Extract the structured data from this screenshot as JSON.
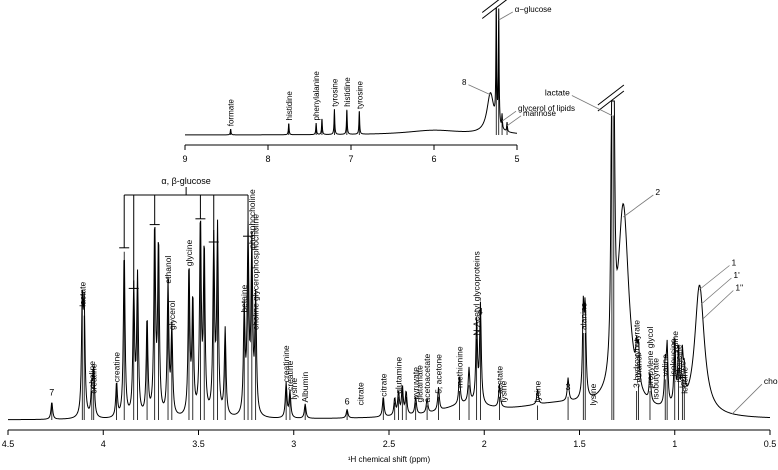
{
  "chart_data": [
    {
      "type": "line",
      "panel": "main",
      "xlabel": "¹H chemical shift (ppm)",
      "xlim": [
        4.5,
        0.5
      ],
      "ticks": [
        "4.5",
        "4",
        "3.5",
        "3",
        "2.5",
        "2",
        "1.5",
        "1",
        "0.5"
      ],
      "tick_values": [
        4.5,
        4.0,
        3.5,
        3.0,
        2.5,
        2.0,
        1.5,
        1.0,
        0.5
      ],
      "peaks": [
        {
          "ppm": 4.27,
          "h": 0.06
        },
        {
          "ppm": 4.11,
          "h": 0.38
        },
        {
          "ppm": 4.1,
          "h": 0.36
        },
        {
          "ppm": 4.06,
          "h": 0.1
        },
        {
          "ppm": 4.05,
          "h": 0.16
        },
        {
          "ppm": 3.93,
          "h": 0.12
        },
        {
          "ppm": 3.89,
          "h": 0.58
        },
        {
          "ppm": 3.84,
          "h": 0.44
        },
        {
          "ppm": 3.82,
          "h": 0.48
        },
        {
          "ppm": 3.77,
          "h": 0.34
        },
        {
          "ppm": 3.73,
          "h": 0.66
        },
        {
          "ppm": 3.71,
          "h": 0.6
        },
        {
          "ppm": 3.66,
          "h": 0.46
        },
        {
          "ppm": 3.64,
          "h": 0.3
        },
        {
          "ppm": 3.55,
          "h": 0.52
        },
        {
          "ppm": 3.53,
          "h": 0.4
        },
        {
          "ppm": 3.49,
          "h": 0.68
        },
        {
          "ppm": 3.47,
          "h": 0.58
        },
        {
          "ppm": 3.42,
          "h": 0.6
        },
        {
          "ppm": 3.4,
          "h": 0.64
        },
        {
          "ppm": 3.36,
          "h": 0.3
        },
        {
          "ppm": 3.26,
          "h": 0.36
        },
        {
          "ppm": 3.24,
          "h": 0.62
        },
        {
          "ppm": 3.22,
          "h": 0.58
        },
        {
          "ppm": 3.2,
          "h": 0.4
        },
        {
          "ppm": 3.04,
          "h": 0.12
        },
        {
          "ppm": 3.02,
          "h": 0.09
        },
        {
          "ppm": 2.94,
          "h": 0.05
        },
        {
          "ppm": 2.72,
          "h": 0.03
        },
        {
          "ppm": 2.53,
          "h": 0.07
        },
        {
          "ppm": 2.47,
          "h": 0.06
        },
        {
          "ppm": 2.45,
          "h": 0.08
        },
        {
          "ppm": 2.43,
          "h": 0.1
        },
        {
          "ppm": 2.41,
          "h": 0.08
        },
        {
          "ppm": 2.36,
          "h": 0.06
        },
        {
          "ppm": 2.3,
          "h": 0.05
        },
        {
          "ppm": 2.24,
          "h": 0.08
        },
        {
          "ppm": 2.13,
          "h": 0.1
        },
        {
          "ppm": 2.08,
          "h": 0.12
        },
        {
          "ppm": 2.04,
          "h": 0.28
        },
        {
          "ppm": 2.02,
          "h": 0.34
        },
        {
          "ppm": 1.92,
          "h": 0.08
        },
        {
          "ppm": 1.72,
          "h": 0.05
        },
        {
          "ppm": 1.56,
          "h": 0.08
        },
        {
          "ppm": 1.48,
          "h": 0.3
        },
        {
          "ppm": 1.47,
          "h": 0.3
        },
        {
          "ppm": 1.33,
          "h": 1.05
        },
        {
          "ppm": 1.32,
          "h": 1.05
        },
        {
          "ppm": 1.2,
          "h": 0.1
        },
        {
          "ppm": 1.19,
          "h": 0.12
        },
        {
          "ppm": 1.13,
          "h": 0.1
        },
        {
          "ppm": 1.05,
          "h": 0.14
        },
        {
          "ppm": 1.04,
          "h": 0.2
        },
        {
          "ppm": 1.0,
          "h": 0.22
        },
        {
          "ppm": 0.98,
          "h": 0.18
        },
        {
          "ppm": 0.96,
          "h": 0.16
        },
        {
          "ppm": 0.95,
          "h": 0.1
        }
      ],
      "broad": [
        {
          "ppm": 1.27,
          "h": 0.7,
          "w": 0.035
        },
        {
          "ppm": 0.87,
          "h": 0.45,
          "w": 0.03
        },
        {
          "ppm": 1.6,
          "h": 0.05,
          "w": 0.3
        },
        {
          "ppm": 2.1,
          "h": 0.04,
          "w": 0.15
        }
      ],
      "labels": [
        {
          "text": "7",
          "ppm": 4.27,
          "tip": 0.06,
          "rotate": false
        },
        {
          "text": "lactate",
          "ppm": 4.11,
          "tip": 0.38,
          "rotate": true
        },
        {
          "text": "choline",
          "ppm": 4.06,
          "tip": 0.1,
          "rotate": true
        },
        {
          "text": "creatine",
          "ppm": 4.05,
          "tip": 0.08,
          "rotate": true
        },
        {
          "text": "creatine",
          "ppm": 3.93,
          "tip": 0.12,
          "rotate": true
        },
        {
          "text": "ethanol",
          "ppm": 3.66,
          "tip": 0.46,
          "rotate": true
        },
        {
          "text": "glycerol",
          "ppm": 3.64,
          "tip": 0.3,
          "rotate": true
        },
        {
          "text": "glycine",
          "ppm": 3.55,
          "tip": 0.52,
          "rotate": true
        },
        {
          "text": "betaine",
          "ppm": 3.26,
          "tip": 0.36,
          "rotate": true
        },
        {
          "text": "phosphocholine",
          "ppm": 3.22,
          "tip": 0.58,
          "rotate": true
        },
        {
          "text": "glycerophosphocholine",
          "ppm": 3.2,
          "tip": 0.4,
          "rotate": true
        },
        {
          "text": "choline",
          "ppm": 3.2,
          "tip": 0.3,
          "rotate": true
        },
        {
          "text": "creatinine",
          "ppm": 3.04,
          "tip": 0.12,
          "rotate": true
        },
        {
          "text": "creatine",
          "ppm": 3.02,
          "tip": 0.09,
          "rotate": true
        },
        {
          "text": "lysine",
          "ppm": 3.0,
          "tip": 0.06,
          "rotate": true
        },
        {
          "text": "Albumin",
          "ppm": 2.94,
          "tip": 0.05,
          "rotate": true
        },
        {
          "text": "6",
          "ppm": 2.72,
          "tip": 0.03,
          "rotate": false
        },
        {
          "text": "citrate",
          "ppm": 2.65,
          "tip": 0.04,
          "rotate": true
        },
        {
          "text": "citrate",
          "ppm": 2.53,
          "tip": 0.07,
          "rotate": true
        },
        {
          "text": "glutamine",
          "ppm": 2.45,
          "tip": 0.08,
          "rotate": true
        },
        {
          "text": "pyruvate",
          "ppm": 2.36,
          "tip": 0.06,
          "rotate": true
        },
        {
          "text": "glutamate",
          "ppm": 2.34,
          "tip": 0.05,
          "rotate": true
        },
        {
          "text": "acetoacetate",
          "ppm": 2.3,
          "tip": 0.05,
          "rotate": true
        },
        {
          "text": "5, acetone",
          "ppm": 2.24,
          "tip": 0.08,
          "rotate": true
        },
        {
          "text": "methionine",
          "ppm": 2.13,
          "tip": 0.1,
          "rotate": true
        },
        {
          "text": "N-Acetyl glycoproteins",
          "ppm": 2.04,
          "tip": 0.28,
          "rotate": true
        },
        {
          "text": "4",
          "ppm": 2.02,
          "tip": 0.34,
          "rotate": false
        },
        {
          "text": "acetate",
          "ppm": 1.92,
          "tip": 0.08,
          "rotate": true
        },
        {
          "text": "lysine",
          "ppm": 1.9,
          "tip": 0.05,
          "rotate": true
        },
        {
          "text": "lysine",
          "ppm": 1.72,
          "tip": 0.05,
          "rotate": true
        },
        {
          "text": "3",
          "ppm": 1.56,
          "tip": 0.08,
          "rotate": false
        },
        {
          "text": "alanine",
          "ppm": 1.48,
          "tip": 0.3,
          "rotate": true
        },
        {
          "text": "lysine",
          "ppm": 1.43,
          "tip": 0.04,
          "rotate": true
        },
        {
          "text": "3-hydroxybutyrate",
          "ppm": 1.2,
          "tip": 0.1,
          "rotate": true
        },
        {
          "text": "ethanol",
          "ppm": 1.19,
          "tip": 0.12,
          "rotate": true
        },
        {
          "text": "propylene glycol",
          "ppm": 1.13,
          "tip": 0.1,
          "rotate": true
        },
        {
          "text": "isobutyrate",
          "ppm": 1.1,
          "tip": 0.06,
          "rotate": true
        },
        {
          "text": "valine",
          "ppm": 1.05,
          "tip": 0.14,
          "rotate": true
        },
        {
          "text": "isoleucine",
          "ppm": 1.01,
          "tip": 0.14,
          "rotate": true
        },
        {
          "text": "valine",
          "ppm": 1.0,
          "tip": 0.22,
          "rotate": true
        },
        {
          "text": "isoleucine",
          "ppm": 0.98,
          "tip": 0.12,
          "rotate": true
        },
        {
          "text": "leucine",
          "ppm": 0.96,
          "tip": 0.1,
          "rotate": true
        },
        {
          "text": "leucine",
          "ppm": 0.95,
          "tip": 0.08,
          "rotate": true
        }
      ],
      "callouts": [
        {
          "text": "lactate",
          "ppm": 1.33,
          "tip": 1.05
        },
        {
          "text": "2",
          "ppm": 1.27,
          "tip": 0.7
        },
        {
          "text": "1",
          "ppm": 0.87,
          "tip": 0.45
        },
        {
          "text": "1'",
          "ppm": 0.86,
          "tip": 0.4
        },
        {
          "text": "1''",
          "ppm": 0.85,
          "tip": 0.35
        },
        {
          "text": "cholesterol",
          "ppm": 0.7,
          "tip": 0.02
        }
      ],
      "bracket_label": "α, β-glucose",
      "bracket_peaks": [
        3.89,
        3.84,
        3.73,
        3.49,
        3.42,
        3.24
      ]
    },
    {
      "type": "line",
      "panel": "inset",
      "xlim": [
        9,
        5
      ],
      "ticks": [
        "9",
        "8",
        "7",
        "6",
        "5"
      ],
      "tick_values": [
        9,
        8,
        7,
        6,
        5
      ],
      "peaks": [
        {
          "ppm": 8.45,
          "h": 0.05
        },
        {
          "ppm": 7.75,
          "h": 0.1
        },
        {
          "ppm": 7.42,
          "h": 0.1
        },
        {
          "ppm": 7.35,
          "h": 0.14
        },
        {
          "ppm": 7.2,
          "h": 0.22
        },
        {
          "ppm": 7.05,
          "h": 0.22
        },
        {
          "ppm": 6.9,
          "h": 0.2
        },
        {
          "ppm": 5.25,
          "h": 1.05
        },
        {
          "ppm": 5.22,
          "h": 1.0
        },
        {
          "ppm": 5.18,
          "h": 0.12
        },
        {
          "ppm": 5.12,
          "h": 0.08
        }
      ],
      "broad": [
        {
          "ppm": 5.32,
          "h": 0.35,
          "w": 0.05
        },
        {
          "ppm": 6.0,
          "h": 0.04,
          "w": 0.4
        }
      ],
      "labels": [
        {
          "text": "formate",
          "ppm": 8.45,
          "tip": 0.05,
          "rotate": true
        },
        {
          "text": "histidine",
          "ppm": 7.75,
          "tip": 0.1,
          "rotate": true
        },
        {
          "text": "phenylalanine",
          "ppm": 7.42,
          "tip": 0.1,
          "rotate": true
        },
        {
          "text": "tyrosine",
          "ppm": 7.2,
          "tip": 0.22,
          "rotate": true
        },
        {
          "text": "histidine",
          "ppm": 7.05,
          "tip": 0.22,
          "rotate": true
        },
        {
          "text": "tyrosine",
          "ppm": 6.9,
          "tip": 0.2,
          "rotate": true
        }
      ],
      "callouts": [
        {
          "text": "α−glucose",
          "ppm": 5.22,
          "tip": 1.0
        },
        {
          "text": "8",
          "ppm": 5.32,
          "tip": 0.35
        },
        {
          "text": "glycerol of lipids",
          "ppm": 5.18,
          "tip": 0.12
        },
        {
          "text": "mannose",
          "ppm": 5.12,
          "tip": 0.08
        }
      ]
    }
  ]
}
